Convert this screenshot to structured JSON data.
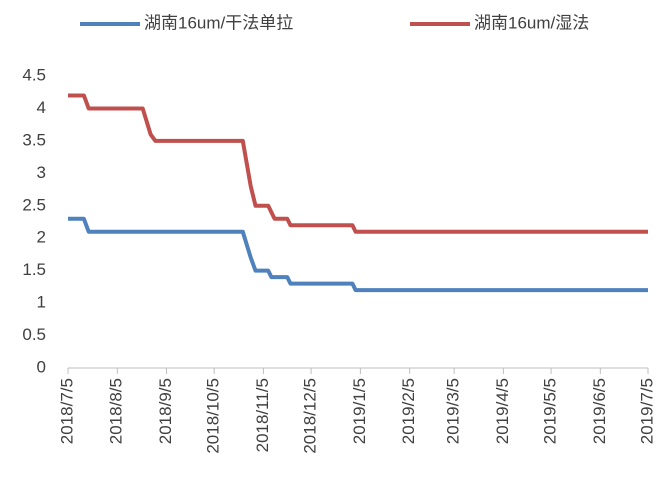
{
  "chart_data": {
    "type": "line",
    "x": [
      "2018/7/5",
      "2018/7/15",
      "2018/7/18",
      "2018/8/21",
      "2018/8/26",
      "2018/8/29",
      "2018/10/23",
      "2018/10/28",
      "2018/10/31",
      "2018/11/8",
      "2018/11/10",
      "2018/11/12",
      "2018/11/20",
      "2018/11/22",
      "2018/12/31",
      "2019/1/2",
      "2019/7/5"
    ],
    "series": [
      {
        "name": "湖南16um/干法单拉",
        "color": "#4f81bd",
        "values": [
          2.3,
          2.3,
          2.1,
          2.1,
          2.1,
          2.1,
          2.1,
          1.7,
          1.5,
          1.5,
          1.4,
          1.4,
          1.4,
          1.3,
          1.3,
          1.2,
          1.2
        ]
      },
      {
        "name": "湖南16um/湿法",
        "color": "#c0504d",
        "values": [
          4.2,
          4.2,
          4.0,
          4.0,
          3.6,
          3.5,
          3.5,
          2.8,
          2.5,
          2.5,
          2.4,
          2.3,
          2.3,
          2.2,
          2.2,
          2.1,
          2.1
        ]
      }
    ],
    "xlim": [
      "2018/7/5",
      "2019/7/5"
    ],
    "xticks": [
      "2018/7/5",
      "2018/8/5",
      "2018/9/5",
      "2018/10/5",
      "2018/11/5",
      "2018/12/5",
      "2019/1/5",
      "2019/2/5",
      "2019/3/5",
      "2019/4/5",
      "2019/5/5",
      "2019/6/5",
      "2019/7/5"
    ],
    "ylim": [
      0,
      4.5
    ],
    "yticks": [
      0,
      0.5,
      1,
      1.5,
      2,
      2.5,
      3,
      3.5,
      4,
      4.5
    ],
    "grid": false,
    "legend": "top"
  }
}
